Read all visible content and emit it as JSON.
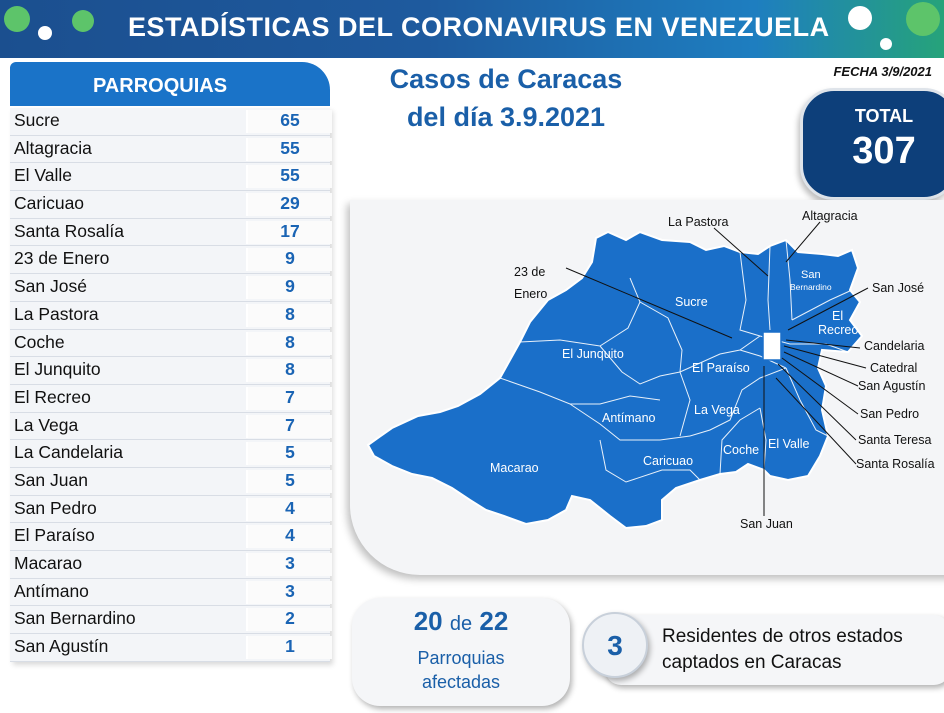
{
  "header": {
    "title": "ESTADÍSTICAS DEL CORONAVIRUS EN VENEZUELA"
  },
  "parroquias": {
    "title": "PARROQUIAS",
    "rows": [
      {
        "name": "Sucre",
        "value": "65"
      },
      {
        "name": "Altagracia",
        "value": "55"
      },
      {
        "name": "El Valle",
        "value": "55"
      },
      {
        "name": "Caricuao",
        "value": "29"
      },
      {
        "name": "Santa Rosalía",
        "value": "17"
      },
      {
        "name": "23 de Enero",
        "value": "9"
      },
      {
        "name": "San José",
        "value": "9"
      },
      {
        "name": "La Pastora",
        "value": "8"
      },
      {
        "name": "Coche",
        "value": "8"
      },
      {
        "name": "El Junquito",
        "value": "8"
      },
      {
        "name": "El Recreo",
        "value": "7"
      },
      {
        "name": "La Vega",
        "value": "7"
      },
      {
        "name": "La Candelaria",
        "value": "5"
      },
      {
        "name": "San Juan",
        "value": "5"
      },
      {
        "name": "San Pedro",
        "value": "4"
      },
      {
        "name": "El Paraíso",
        "value": "4"
      },
      {
        "name": "Macarao",
        "value": "3"
      },
      {
        "name": "Antímano",
        "value": "3"
      },
      {
        "name": "San Bernardino",
        "value": "2"
      },
      {
        "name": "San Agustín",
        "value": "1"
      }
    ]
  },
  "cases": {
    "line1": "Casos de Caracas",
    "line2": "del día 3.9.2021"
  },
  "fecha": "FECHA 3/9/2021",
  "total": {
    "label": "TOTAL",
    "value": "307"
  },
  "map": {
    "inner_labels": {
      "sucre": "Sucre",
      "junquito": "El Junquito",
      "paraiso": "El Paraíso",
      "antimano": "Antímano",
      "vega": "La Vega",
      "macarao": "Macarao",
      "caricuao": "Caricuao",
      "coche": "Coche",
      "valle": "El Valle",
      "san_bernardino_1": "San",
      "san_bernardino_2": "Bernardino",
      "recreo_1": "El",
      "recreo_2": "Recreo"
    },
    "callouts": {
      "la_pastora": "La Pastora",
      "altagracia": "Altagracia",
      "enero_1": "23 de",
      "enero_2": "Enero",
      "san_jose": "San José",
      "candelaria": "Candelaria",
      "catedral": "Catedral",
      "san_agustin": "San Agustín",
      "san_pedro": "San Pedro",
      "santa_teresa": "Santa Teresa",
      "santa_rosalia": "Santa Rosalía",
      "san_juan": "San Juan"
    },
    "map_color": "#1a6fc9"
  },
  "affected": {
    "count": "20",
    "de": "de",
    "total": "22",
    "line1": "Parroquias",
    "line2": "afectadas"
  },
  "residents": {
    "count": "3",
    "line1": "Residentes de otros estados",
    "line2": "captados en Caracas"
  }
}
